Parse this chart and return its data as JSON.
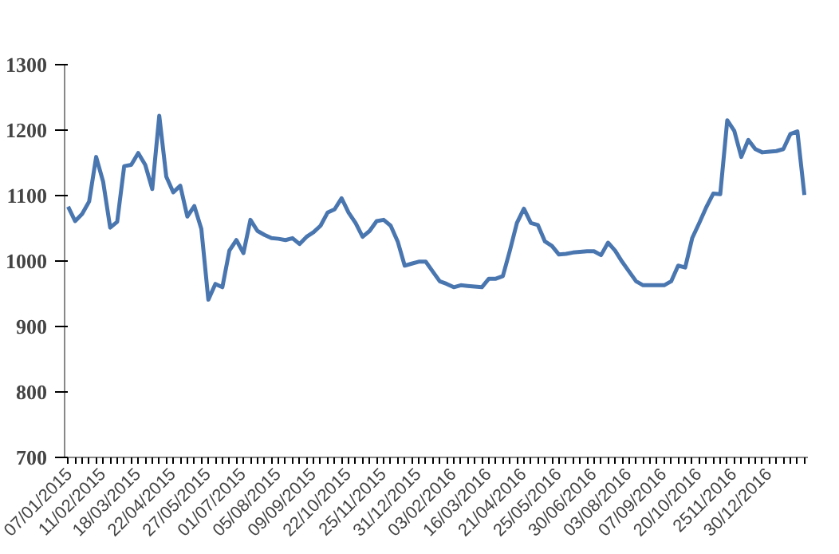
{
  "chart_data": {
    "type": "line",
    "categories": [
      "07/01/2015",
      null,
      null,
      null,
      null,
      "11/02/2015",
      null,
      null,
      null,
      null,
      "18/03/2015",
      null,
      null,
      null,
      null,
      "22/04/2015",
      null,
      null,
      null,
      null,
      "27/05/2015",
      null,
      null,
      null,
      null,
      "01/07/2015",
      null,
      null,
      null,
      null,
      "05/08/2015",
      null,
      null,
      null,
      null,
      "09/09/2015",
      null,
      null,
      null,
      null,
      "22/10/2015",
      null,
      null,
      null,
      null,
      "25/11/2015",
      null,
      null,
      null,
      null,
      "31/12/2015",
      null,
      null,
      null,
      null,
      "03/02/2016",
      null,
      null,
      null,
      null,
      "16/03/2016",
      null,
      null,
      null,
      null,
      "21/04/2016",
      null,
      null,
      null,
      null,
      "25/05/2016",
      null,
      null,
      null,
      null,
      "30/06/2016",
      null,
      null,
      null,
      null,
      "03/08/2016",
      null,
      null,
      null,
      null,
      "07/09/2016",
      null,
      null,
      null,
      null,
      "20/10/2016",
      null,
      null,
      null,
      null,
      "2511/2016",
      null,
      null,
      null,
      null,
      "30/12/2016",
      null,
      null,
      null,
      null,
      null
    ],
    "series": [
      {
        "color": "#4a76b0",
        "values": [
          1083,
          1061,
          1072,
          1091,
          1159,
          1121,
          1051,
          1060,
          1145,
          1147,
          1165,
          1147,
          1110,
          1222,
          1129,
          1105,
          1115,
          1068,
          1084,
          1049,
          941,
          965,
          960,
          1016,
          1032,
          1012,
          1063,
          1046,
          1040,
          1035,
          1034,
          1032,
          1035,
          1026,
          1037,
          1044,
          1054,
          1074,
          1079,
          1096,
          1074,
          1058,
          1037,
          1046,
          1061,
          1063,
          1054,
          1030,
          993,
          996,
          999,
          999,
          984,
          969,
          965,
          960,
          963,
          962,
          961,
          960,
          973,
          973,
          977,
          1016,
          1058,
          1080,
          1058,
          1055,
          1030,
          1023,
          1010,
          1011,
          1013,
          1014,
          1015,
          1015,
          1009,
          1028,
          1016,
          999,
          984,
          969,
          963,
          963,
          963,
          963,
          969,
          993,
          990,
          1035,
          1058,
          1082,
          1103,
          1102,
          1215,
          1199,
          1159,
          1185,
          1171,
          1166,
          1167,
          1168,
          1171,
          1194,
          1198,
          1101
        ]
      }
    ],
    "ylim": [
      700,
      1300
    ],
    "yticks": [
      700,
      800,
      900,
      1000,
      1100,
      1200,
      1300
    ],
    "grid": false,
    "marker": "none",
    "line_style": "solid"
  }
}
